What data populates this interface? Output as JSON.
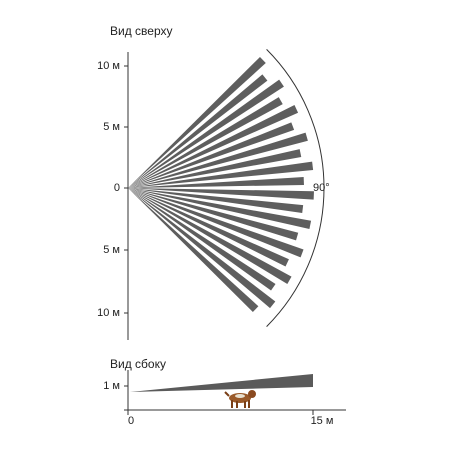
{
  "top_view": {
    "title": "Вид сверху",
    "axis_labels": [
      "10 м",
      "5 м",
      "0",
      "5 м",
      "10 м"
    ],
    "angle_label": "90°"
  },
  "side_view": {
    "title": "Вид сбоку",
    "height_label": "1 м",
    "x_labels": [
      "0",
      "15 м"
    ]
  }
}
